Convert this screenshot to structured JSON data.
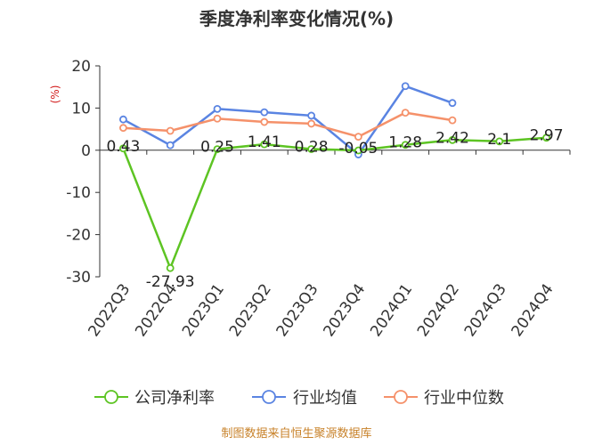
{
  "chart_data": {
    "type": "line",
    "title": "季度净利率变化情况(%)",
    "ylabel": "(%)",
    "ylim": [
      -30,
      20
    ],
    "yticks": [
      20,
      10,
      0,
      -10,
      -20,
      -30
    ],
    "categories": [
      "2022Q3",
      "2022Q4",
      "2023Q1",
      "2023Q2",
      "2023Q3",
      "2023Q4",
      "2024Q1",
      "2024Q2",
      "2024Q3",
      "2024Q4"
    ],
    "series": [
      {
        "name": "公司净利率",
        "color": "#5dc423",
        "values": [
          0.43,
          -27.93,
          0.25,
          1.41,
          0.28,
          -0.05,
          1.28,
          2.42,
          2.1,
          2.97
        ],
        "labels": [
          "0.43",
          "-27.93",
          "0.25",
          "1.41",
          "0.28",
          "-0.05",
          "1.28",
          "2.42",
          "2.1",
          "2.97"
        ]
      },
      {
        "name": "行业均值",
        "color": "#5a84e2",
        "values": [
          7.3,
          1.2,
          9.8,
          9.0,
          8.2,
          -1.0,
          15.2,
          11.2,
          null,
          null
        ]
      },
      {
        "name": "行业中位数",
        "color": "#f5916a",
        "values": [
          5.3,
          4.6,
          7.5,
          6.7,
          6.3,
          3.2,
          8.9,
          7.1,
          null,
          null
        ]
      }
    ],
    "grid": false,
    "legend": "bottom"
  },
  "source": "制图数据来自恒生聚源数据库"
}
